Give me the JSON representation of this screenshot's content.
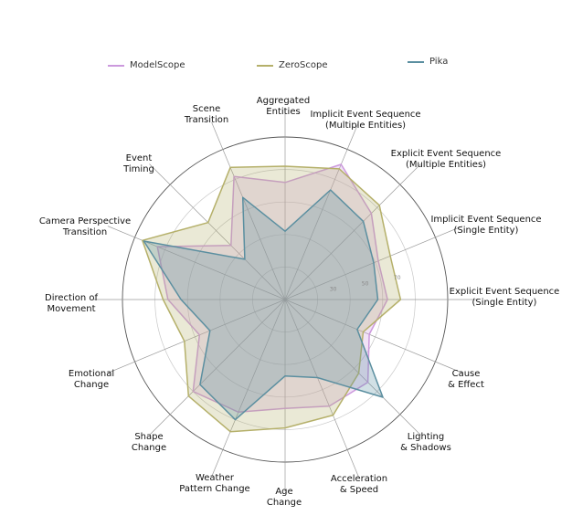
{
  "chart_data": {
    "type": "radar",
    "categories": [
      "Aggregated\nEntities",
      "Implicit Event Sequence\n(Multiple Entities)",
      "Explicit Event Sequence\n(Multiple Entities)",
      "Implicit Event Sequence\n(Single Entity)",
      "Explicit Event Sequence\n(Single Entity)",
      "Cause\n& Effect",
      "Lighting\n& Shadows",
      "Acceleration\n& Speed",
      "Age\nChange",
      "Weather\nPattern Change",
      "Shape\nChange",
      "Emotional\nChange",
      "Direction of\nMovement",
      "Camera Perspective\nTransition",
      "Event\nTiming",
      "Scene\nTransition"
    ],
    "series": [
      {
        "name": "ModelScope",
        "color": "#cc99dd",
        "values": [
          72,
          90,
          75,
          62,
          63,
          56,
          72,
          71,
          67,
          75,
          80,
          57,
          72,
          85,
          47,
          82
        ]
      },
      {
        "name": "ZeroScope",
        "color": "#b5b06a",
        "values": [
          82,
          87,
          82,
          70,
          71,
          52,
          64,
          77,
          79,
          88,
          84,
          67,
          75,
          95,
          67,
          88
        ]
      },
      {
        "name": "Pika",
        "color": "#5b8fa0",
        "values": [
          42,
          73,
          68,
          59,
          57,
          48,
          85,
          52,
          47,
          80,
          74,
          50,
          64,
          94,
          35,
          68
        ]
      }
    ],
    "radial_ticks": [
      30,
      50,
      70
    ],
    "rlim": [
      0,
      100
    ],
    "grid": true,
    "legend_position": "top"
  }
}
